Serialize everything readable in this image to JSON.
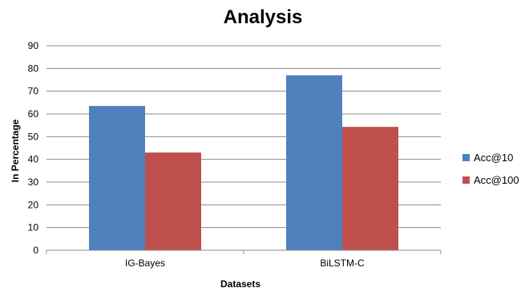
{
  "chart_data": {
    "type": "bar",
    "title": "Analysis",
    "xlabel": "Datasets",
    "ylabel": "In Percentage",
    "categories": [
      "IG-Bayes",
      "BiLSTM-C"
    ],
    "series": [
      {
        "name": "Acc@10",
        "values": [
          63.5,
          77
        ],
        "color": "#4f81bd"
      },
      {
        "name": "Acc@100",
        "values": [
          43,
          54.3
        ],
        "color": "#c0504d"
      }
    ],
    "ylim": [
      0,
      90
    ],
    "yticks": [
      0,
      10,
      20,
      30,
      40,
      50,
      60,
      70,
      80,
      90
    ],
    "grid": true,
    "legend_position": "right"
  }
}
